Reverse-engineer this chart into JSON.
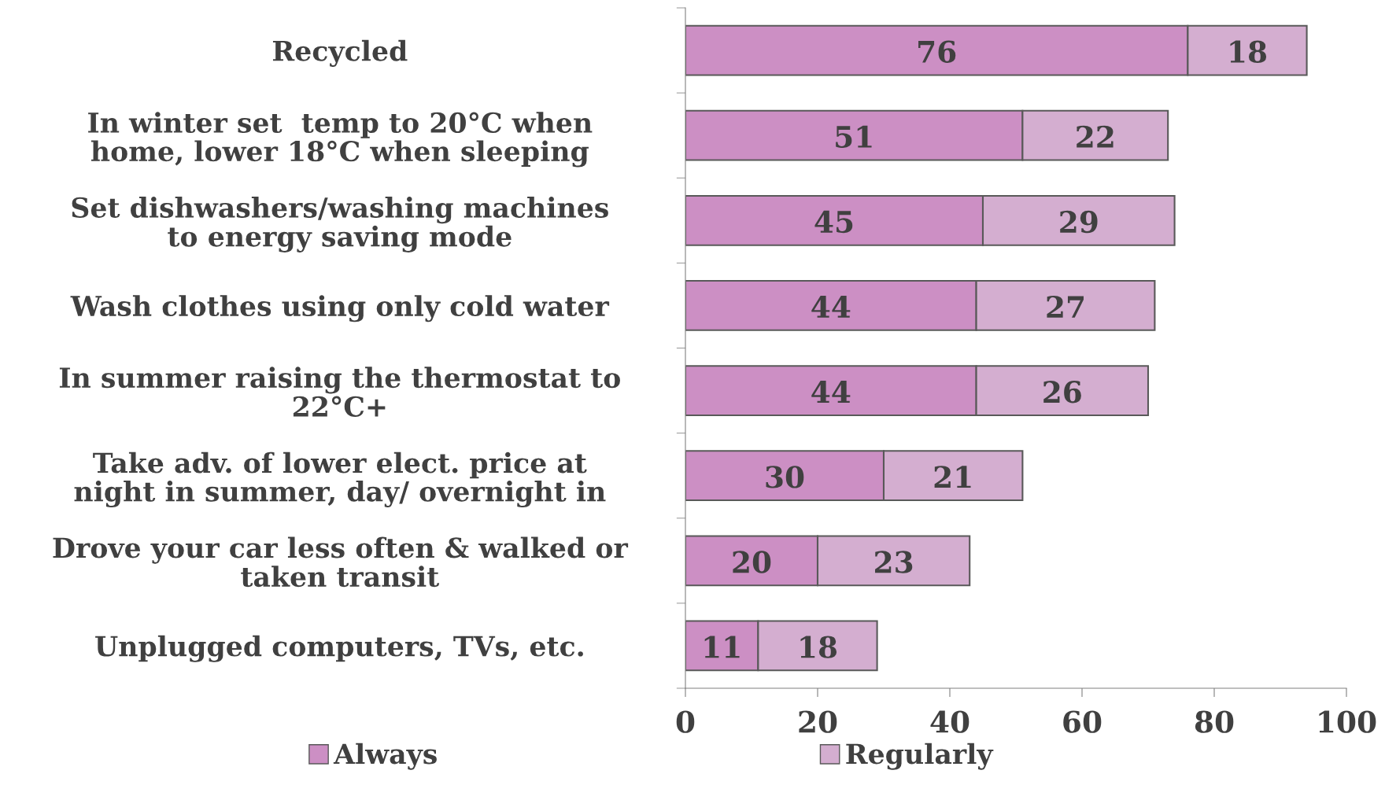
{
  "chart_data": {
    "type": "bar",
    "orientation": "horizontal",
    "stacked": true,
    "categories": [
      "Recycled",
      "In winter set  temp to 20°C when\nhome, lower 18°C when sleeping",
      "Set dishwashers/washing machines\nto energy saving mode",
      "Wash clothes using only cold water",
      "In summer raising the thermostat to\n22°C+",
      "Take adv. of lower elect. price at\nnight in summer, day/ overnight in",
      "Drove your car less often & walked or\ntaken transit",
      "Unplugged computers, TVs, etc."
    ],
    "series": [
      {
        "name": "Always",
        "color": "#cc8fc4",
        "values": [
          76,
          51,
          45,
          44,
          44,
          30,
          20,
          11
        ]
      },
      {
        "name": "Regularly",
        "color": "#d4aed0",
        "values": [
          18,
          22,
          29,
          27,
          26,
          21,
          23,
          18
        ]
      }
    ],
    "xlim": [
      0,
      100
    ],
    "xticks": [
      0,
      20,
      40,
      60,
      80,
      100
    ],
    "data_labels": true,
    "legend": "bottom",
    "grid": false
  }
}
